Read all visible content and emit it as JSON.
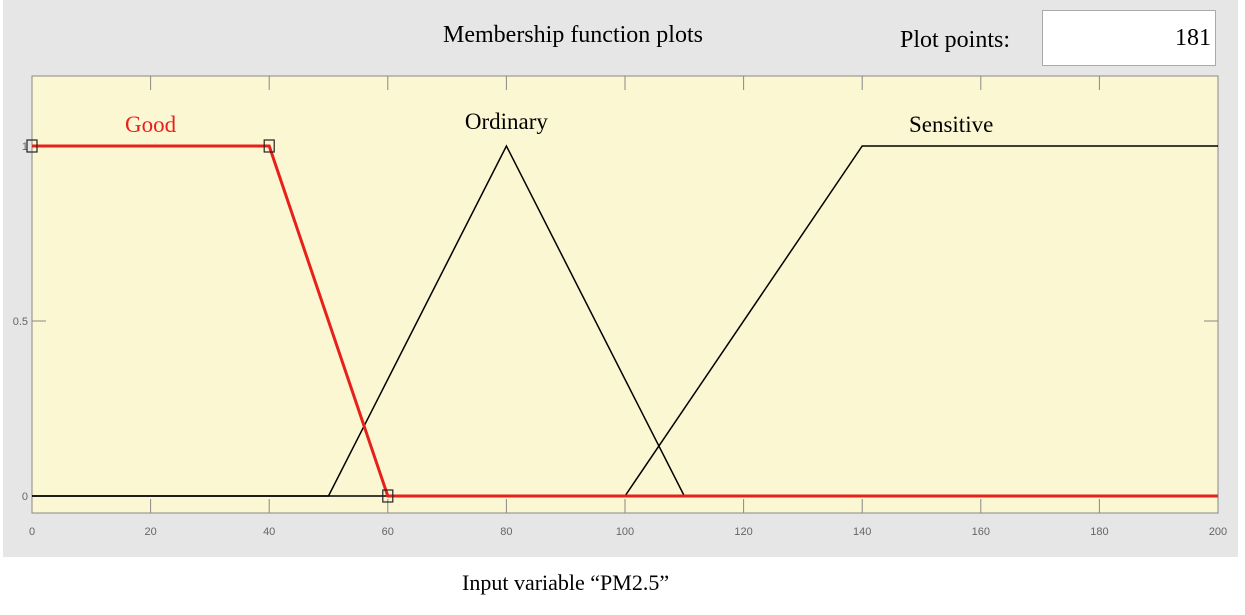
{
  "header": {
    "title": "Membership function plots",
    "plot_points_label": "Plot points:",
    "plot_points_value": "181"
  },
  "chart_data": {
    "type": "line",
    "xlabel": "Input variable  “PM2.5”",
    "xlim": [
      0,
      200
    ],
    "ylim": [
      0,
      1
    ],
    "xticks": [
      0,
      20,
      40,
      60,
      80,
      100,
      120,
      140,
      160,
      180,
      200
    ],
    "yticks": [
      0,
      0.5,
      1
    ],
    "background": "#fbf7d2",
    "series": [
      {
        "name": "Good",
        "type": "trapmf",
        "params": [
          0,
          0,
          40,
          60
        ],
        "points": [
          [
            0,
            1
          ],
          [
            40,
            1
          ],
          [
            60,
            0
          ],
          [
            200,
            0
          ]
        ],
        "color": "#e8201c",
        "selected": true
      },
      {
        "name": "Ordinary",
        "type": "trimf",
        "params": [
          50,
          80,
          110
        ],
        "points": [
          [
            0,
            0
          ],
          [
            50,
            0
          ],
          [
            80,
            1
          ],
          [
            110,
            0
          ],
          [
            200,
            0
          ]
        ],
        "color": "#000000"
      },
      {
        "name": "Sensitive",
        "type": "trapmf",
        "params": [
          100,
          140,
          200,
          200
        ],
        "points": [
          [
            0,
            0
          ],
          [
            100,
            0
          ],
          [
            140,
            1
          ],
          [
            200,
            1
          ]
        ],
        "color": "#000000"
      }
    ]
  }
}
